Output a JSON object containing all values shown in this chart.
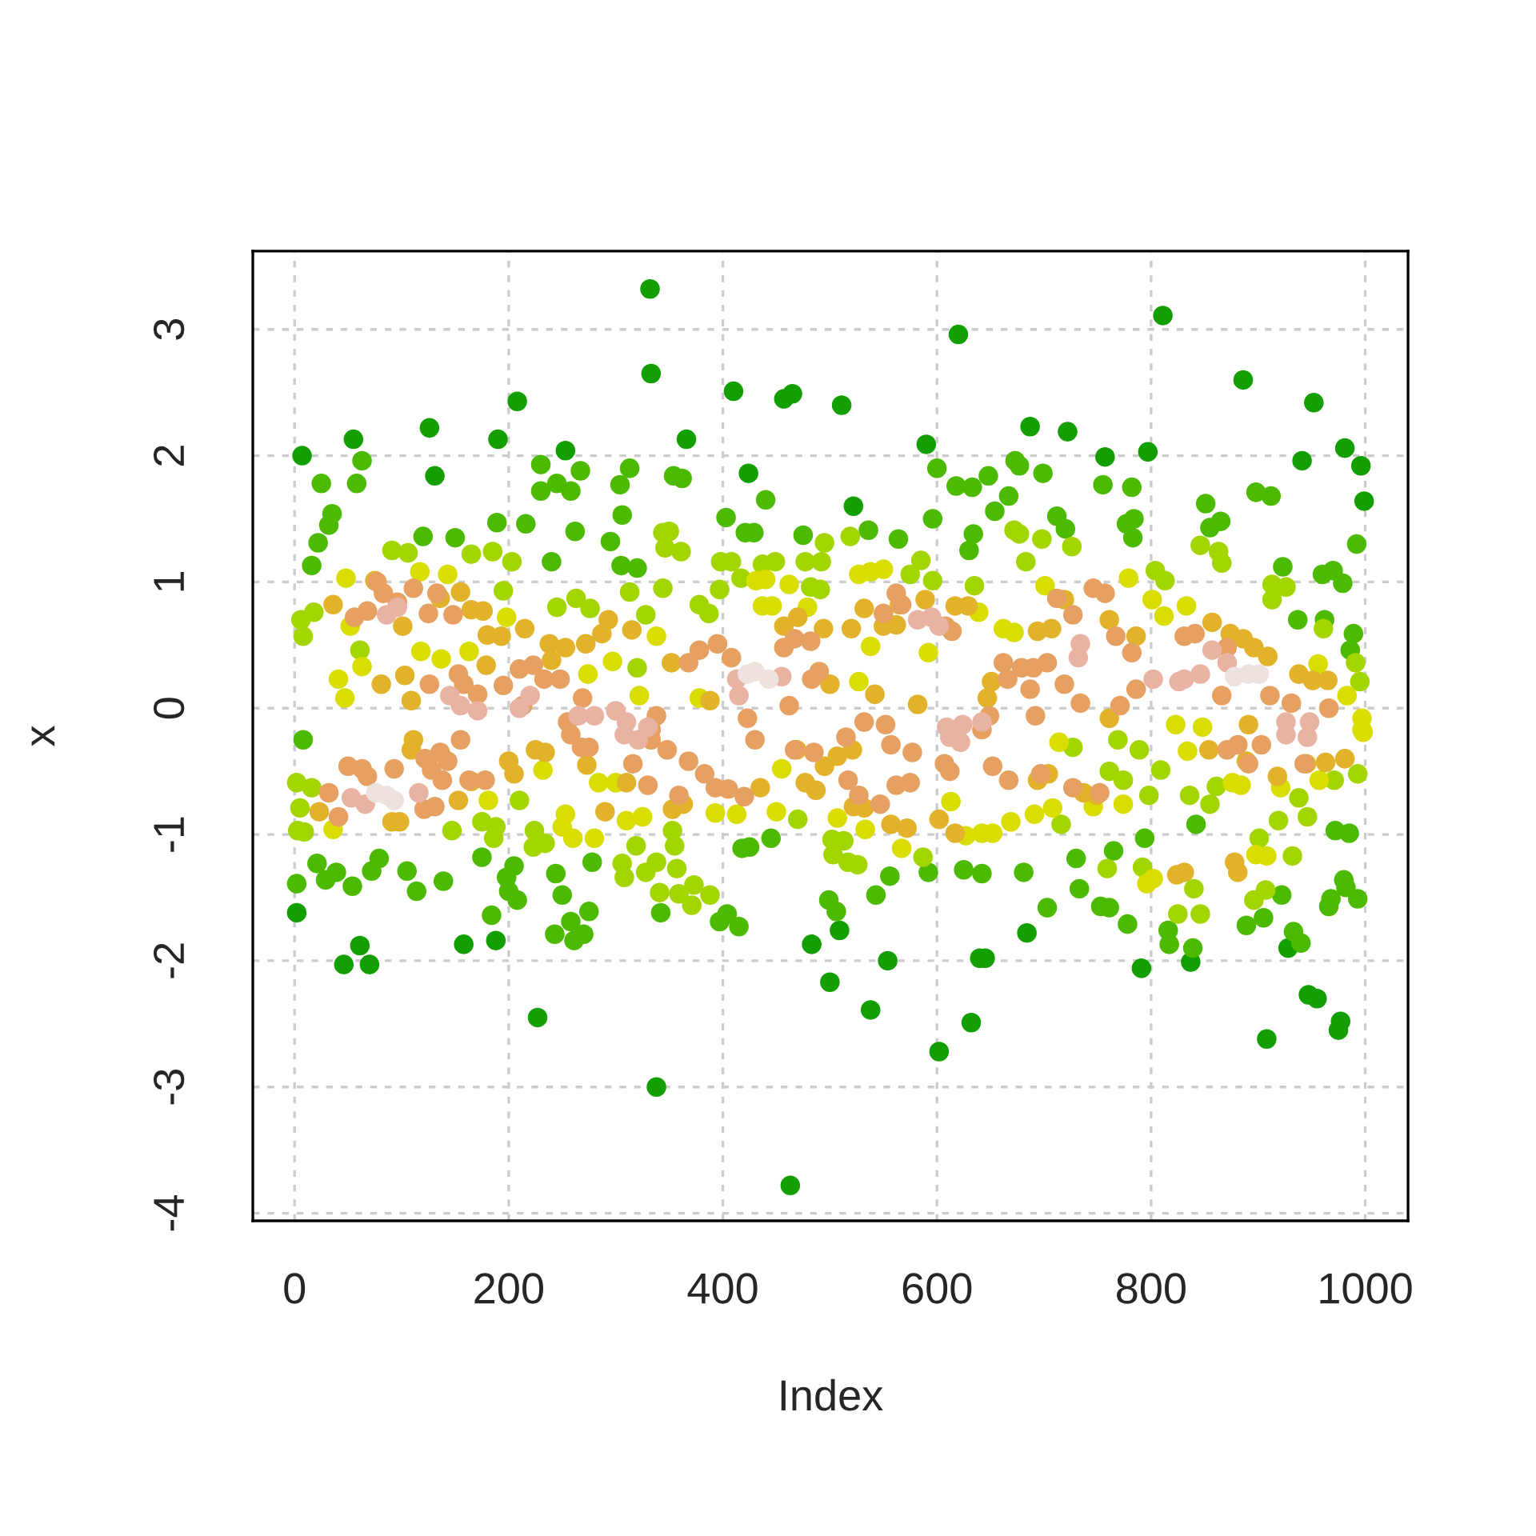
{
  "chart_data": {
    "type": "scatter",
    "xlabel": "Index",
    "ylabel": "x",
    "xlim": [
      -39,
      1040
    ],
    "ylim": [
      -4.06,
      3.62
    ],
    "xticks": [
      0,
      200,
      400,
      600,
      800,
      1000
    ],
    "yticks": [
      -4,
      -3,
      -2,
      -1,
      0,
      1,
      2,
      3
    ],
    "grid": true,
    "marker": "circle",
    "series": [
      {
        "color": "#139f00",
        "x": [
          7,
          55,
          126,
          190,
          208,
          253,
          332,
          333,
          366,
          410,
          457,
          465,
          511,
          424,
          522,
          590,
          620,
          687,
          722,
          757,
          797,
          811,
          886,
          952,
          981,
          996,
          999,
          941,
          131,
          2,
          46,
          70,
          61,
          227,
          338,
          463,
          500,
          538,
          554,
          602,
          632,
          640,
          645,
          483,
          509,
          684,
          791,
          837,
          908,
          947,
          955,
          977,
          975,
          928,
          158,
          188
        ],
        "values": [
          2.0,
          2.13,
          2.22,
          2.13,
          2.43,
          2.04,
          3.32,
          2.65,
          2.13,
          2.51,
          2.45,
          2.49,
          2.4,
          1.86,
          1.6,
          2.09,
          2.96,
          2.23,
          2.19,
          1.99,
          2.03,
          3.11,
          2.6,
          2.42,
          2.06,
          1.92,
          1.64,
          1.96,
          1.84,
          -1.62,
          -2.03,
          -2.03,
          -1.88,
          -2.45,
          -3.0,
          -3.78,
          -2.17,
          -2.39,
          -2.0,
          -2.72,
          -2.49,
          -1.98,
          -1.98,
          -1.87,
          -1.76,
          -1.78,
          -2.06,
          -2.01,
          -2.62,
          -2.27,
          -2.3,
          -2.48,
          -2.55,
          -1.9,
          -1.87,
          -1.84
        ]
      },
      {
        "color": "#4cba00",
        "x": [
          25,
          63,
          58,
          35,
          32,
          22,
          16,
          189,
          216,
          230,
          230,
          245,
          258,
          267,
          262,
          240,
          120,
          150,
          313,
          304,
          306,
          295,
          305,
          320,
          354,
          362,
          440,
          403,
          600,
          596,
          673,
          677,
          648,
          667,
          654,
          618,
          633,
          634,
          630,
          421,
          429,
          475,
          536,
          564,
          699,
          755,
          782,
          898,
          912,
          851,
          855,
          865,
          777,
          784,
          783,
          712,
          720,
          923,
          992,
          960,
          970,
          979,
          989,
          986,
          937,
          962,
          8,
          21,
          29,
          39,
          54,
          72,
          79,
          105,
          114,
          139,
          175,
          184,
          198,
          205,
          200,
          208,
          244,
          250,
          275,
          258,
          243,
          261,
          270,
          278,
          415,
          397,
          404,
          342,
          418,
          425,
          445,
          506,
          499,
          543,
          556,
          592,
          625,
          642,
          681,
          933,
          940,
          839,
          816,
          817,
          778,
          753,
          761,
          703,
          733,
          730,
          765,
          794,
          842,
          889,
          905,
          922,
          966,
          968,
          993,
          980,
          982,
          972,
          985,
          2
        ],
        "values": [
          1.78,
          1.96,
          1.78,
          1.54,
          1.45,
          1.31,
          1.13,
          1.47,
          1.46,
          1.93,
          1.72,
          1.78,
          1.72,
          1.88,
          1.4,
          1.16,
          1.36,
          1.35,
          1.9,
          1.77,
          1.53,
          1.32,
          1.13,
          1.11,
          1.84,
          1.82,
          1.65,
          1.51,
          1.9,
          1.5,
          1.96,
          1.92,
          1.84,
          1.68,
          1.56,
          1.76,
          1.75,
          1.38,
          1.25,
          1.39,
          1.39,
          1.37,
          1.41,
          1.34,
          1.86,
          1.77,
          1.75,
          1.71,
          1.68,
          1.62,
          1.43,
          1.48,
          1.46,
          1.5,
          1.35,
          1.52,
          1.42,
          1.12,
          1.3,
          1.06,
          1.09,
          0.99,
          0.59,
          0.46,
          0.7,
          0.7,
          -0.25,
          -1.23,
          -1.36,
          -1.3,
          -1.41,
          -1.29,
          -1.19,
          -1.29,
          -1.45,
          -1.37,
          -1.18,
          -1.64,
          -1.34,
          -1.25,
          -1.45,
          -1.52,
          -1.31,
          -1.48,
          -1.61,
          -1.69,
          -1.79,
          -1.84,
          -1.79,
          -1.22,
          -1.73,
          -1.69,
          -1.63,
          -1.62,
          -1.11,
          -1.1,
          -1.03,
          -1.61,
          -1.52,
          -1.48,
          -1.33,
          -1.3,
          -1.28,
          -1.31,
          -1.3,
          -1.77,
          -1.86,
          -1.9,
          -1.76,
          -1.87,
          -1.71,
          -1.57,
          -1.58,
          -1.58,
          -1.43,
          -1.19,
          -1.13,
          -1.03,
          -0.92,
          -1.72,
          -1.66,
          -1.48,
          -1.57,
          -1.51,
          -1.51,
          -1.36,
          -1.42,
          -0.97,
          -0.99,
          -1.39
        ]
      },
      {
        "color": "#a3d500",
        "x": [
          91,
          106,
          344,
          350,
          346,
          361,
          313,
          344,
          585,
          596,
          635,
          804,
          813,
          913,
          926,
          913,
          961,
          991,
          995,
          846,
          863,
          866,
          683,
          698,
          726,
          165,
          185,
          203,
          195,
          245,
          263,
          276,
          6,
          8,
          18,
          320,
          61,
          398,
          408,
          437,
          449,
          477,
          492,
          495,
          519,
          575,
          672,
          677,
          397,
          417,
          482,
          491,
          378,
          387,
          328,
          2,
          5,
          16,
          3,
          9,
          175,
          188,
          186,
          210,
          224,
          234,
          223,
          308,
          319,
          306,
          147,
          353,
          355,
          338,
          357,
          328,
          502,
          513,
          503,
          517,
          526,
          587,
          470,
          769,
          789,
          761,
          774,
          798,
          809,
          836,
          855,
          861,
          919,
          938,
          946,
          932,
          901,
          896,
          907,
          840,
          825,
          846,
          792,
          759,
          716,
          727,
          993,
          971,
          341,
          359,
          371,
          373,
          388
        ],
        "values": [
          1.25,
          1.23,
          1.39,
          1.4,
          1.27,
          1.24,
          0.92,
          0.95,
          1.17,
          1.01,
          0.97,
          1.09,
          1.01,
          0.98,
          0.96,
          0.86,
          0.63,
          0.36,
          0.21,
          1.29,
          1.24,
          1.15,
          1.16,
          1.34,
          1.28,
          1.22,
          1.24,
          1.16,
          0.93,
          0.8,
          0.87,
          0.79,
          0.7,
          0.57,
          0.76,
          0.32,
          0.46,
          1.16,
          1.16,
          1.14,
          1.16,
          1.16,
          1.16,
          1.31,
          1.36,
          1.06,
          1.41,
          1.38,
          0.94,
          1.03,
          0.96,
          0.94,
          0.82,
          0.75,
          0.74,
          -0.59,
          -0.79,
          -0.63,
          -0.97,
          -0.98,
          -0.9,
          -0.94,
          -1.03,
          -0.73,
          -0.97,
          -1.07,
          -1.1,
          -1.34,
          -1.09,
          -1.23,
          -0.97,
          -0.97,
          -1.09,
          -1.22,
          -1.27,
          -1.3,
          -1.04,
          -1.05,
          -1.16,
          -1.22,
          -1.24,
          -1.18,
          -0.88,
          -0.25,
          -0.33,
          -0.5,
          -0.57,
          -0.69,
          -0.49,
          -0.69,
          -0.76,
          -0.62,
          -0.89,
          -0.71,
          -0.86,
          -1.17,
          -1.03,
          -1.52,
          -1.44,
          -1.43,
          -1.63,
          -1.63,
          -1.26,
          -1.27,
          -0.92,
          -0.31,
          -0.52,
          -0.57,
          -1.46,
          -1.47,
          -1.56,
          -1.4,
          -1.48
        ]
      },
      {
        "color": "#dadd00",
        "x": [
          48,
          117,
          143,
          52,
          63,
          118,
          137,
          163,
          198,
          297,
          274,
          322,
          41,
          47,
          527,
          538,
          550,
          431,
          440,
          437,
          446,
          462,
          479,
          639,
          662,
          672,
          592,
          538,
          338,
          378,
          527,
          701,
          779,
          801,
          812,
          833,
          956,
          983,
          997,
          997,
          823,
          848,
          232,
          181,
          253,
          250,
          36,
          260,
          280,
          284,
          300,
          310,
          325,
          393,
          413,
          450,
          455,
          507,
          533,
          567,
          613,
          627,
          642,
          652,
          669,
          714,
          691,
          708,
          746,
          774,
          834,
          876,
          884,
          921,
          957,
          998,
          908,
          898,
          796,
          802
        ],
        "values": [
          1.03,
          1.08,
          1.06,
          0.65,
          0.33,
          0.45,
          0.39,
          0.45,
          0.72,
          0.37,
          0.27,
          0.1,
          0.23,
          0.08,
          1.06,
          1.08,
          1.1,
          1.01,
          1.02,
          0.81,
          0.81,
          0.98,
          0.8,
          0.76,
          0.63,
          0.6,
          0.44,
          0.49,
          0.57,
          0.08,
          0.21,
          0.97,
          1.03,
          0.86,
          0.73,
          0.81,
          0.35,
          0.1,
          -0.08,
          -0.17,
          -0.13,
          -0.15,
          -0.49,
          -0.73,
          -0.84,
          -0.94,
          -0.96,
          -1.03,
          -1.03,
          -0.59,
          -0.59,
          -0.89,
          -0.86,
          -0.83,
          -0.84,
          -0.82,
          -0.48,
          -0.87,
          -0.96,
          -1.11,
          -0.74,
          -1.01,
          -0.99,
          -0.99,
          -0.9,
          -0.27,
          -0.84,
          -0.79,
          -0.78,
          -0.76,
          -0.34,
          -0.59,
          -0.61,
          -0.63,
          -0.57,
          -0.19,
          -1.17,
          -1.16,
          -1.39,
          -1.35
        ]
      },
      {
        "color": "#e2b32a",
        "x": [
          75,
          136,
          155,
          165,
          176,
          180,
          193,
          215,
          238,
          253,
          272,
          287,
          293,
          81,
          103,
          109,
          179,
          240,
          315,
          36,
          101,
          589,
          617,
          629,
          565,
          532,
          520,
          550,
          562,
          494,
          470,
          457,
          542,
          582,
          651,
          647,
          352,
          388,
          500,
          761,
          786,
          857,
          874,
          886,
          896,
          909,
          938,
          951,
          965,
          891,
          694,
          707,
          719,
          761,
          109,
          111,
          23,
          153,
          165,
          200,
          205,
          225,
          234,
          273,
          290,
          310,
          91,
          98,
          495,
          507,
          521,
          435,
          477,
          487,
          522,
          532,
          557,
          572,
          602,
          617,
          469,
          353,
          363,
          694,
          704,
          737,
          749,
          854,
          889,
          918,
          963,
          981,
          945,
          881,
          824,
          831,
          878
        ],
        "values": [
          1.01,
          0.87,
          0.92,
          0.78,
          0.77,
          0.58,
          0.57,
          0.63,
          0.51,
          0.48,
          0.51,
          0.59,
          0.7,
          0.19,
          0.26,
          0.06,
          0.34,
          0.38,
          0.62,
          0.82,
          0.65,
          0.86,
          0.81,
          0.81,
          0.82,
          0.79,
          0.63,
          0.65,
          0.66,
          0.63,
          0.72,
          0.65,
          0.11,
          0.03,
          0.21,
          0.08,
          0.36,
          0.06,
          0.19,
          0.7,
          0.57,
          0.68,
          0.59,
          0.55,
          0.48,
          0.41,
          0.27,
          0.22,
          0.22,
          -0.13,
          0.61,
          0.63,
          0.86,
          -0.08,
          -0.33,
          -0.25,
          -0.82,
          -0.73,
          -0.58,
          -0.42,
          -0.52,
          -0.33,
          -0.35,
          -0.45,
          -0.82,
          -0.59,
          -0.9,
          -0.9,
          -0.46,
          -0.38,
          -0.33,
          -0.63,
          -0.59,
          -0.65,
          -0.78,
          -0.79,
          -0.92,
          -0.95,
          -0.88,
          -0.99,
          -0.33,
          -0.8,
          -0.76,
          -0.57,
          -0.52,
          -0.67,
          -0.69,
          -0.33,
          -0.42,
          -0.54,
          -0.43,
          -0.4,
          -0.44,
          -1.3,
          -1.32,
          -1.3,
          -1.22
        ]
      },
      {
        "color": "#e5a062",
        "x": [
          77,
          83,
          96,
          56,
          68,
          111,
          133,
          125,
          148,
          210,
          223,
          233,
          248,
          153,
          158,
          171,
          195,
          126,
          213,
          255,
          269,
          338,
          333,
          395,
          408,
          378,
          368,
          457,
          467,
          482,
          483,
          490,
          462,
          567,
          562,
          550,
          614,
          608,
          662,
          679,
          666,
          649,
          642,
          532,
          552,
          423,
          712,
          727,
          746,
          757,
          767,
          782,
          690,
          703,
          687,
          719,
          734,
          771,
          786,
          831,
          841,
          871,
          911,
          931,
          966,
          866,
          692,
          50,
          63,
          68,
          32,
          41,
          93,
          122,
          136,
          143,
          128,
          138,
          121,
          131,
          163,
          178,
          155,
          258,
          268,
          275,
          316,
          330,
          333,
          348,
          368,
          383,
          393,
          405,
          420,
          359,
          467,
          485,
          517,
          527,
          547,
          557,
          577,
          562,
          575,
          607,
          612,
          652,
          667,
          430,
          515,
          871,
          881,
          891,
          903,
          943,
          727,
          752,
          697
        ],
        "values": [
          1.0,
          0.91,
          0.84,
          0.72,
          0.77,
          0.95,
          0.91,
          0.75,
          0.74,
          0.31,
          0.34,
          0.23,
          0.23,
          0.27,
          0.19,
          0.11,
          0.18,
          0.19,
          0.02,
          -0.11,
          0.08,
          -0.06,
          -0.17,
          0.51,
          0.4,
          0.46,
          0.36,
          0.48,
          0.55,
          0.53,
          0.23,
          0.29,
          0.02,
          0.82,
          0.91,
          0.75,
          0.61,
          0.65,
          0.36,
          0.32,
          0.23,
          -0.06,
          -0.17,
          -0.11,
          -0.13,
          -0.08,
          0.87,
          0.74,
          0.95,
          0.91,
          0.57,
          0.44,
          0.32,
          0.36,
          0.15,
          0.19,
          0.04,
          0.02,
          0.15,
          0.57,
          0.59,
          0.48,
          0.1,
          0.04,
          0.0,
          0.1,
          -0.06,
          -0.46,
          -0.48,
          -0.54,
          -0.67,
          -0.86,
          -0.48,
          -0.4,
          -0.35,
          -0.42,
          -0.49,
          -0.57,
          -0.8,
          -0.78,
          -0.57,
          -0.57,
          -0.25,
          -0.21,
          -0.31,
          -0.31,
          -0.44,
          -0.61,
          -0.25,
          -0.33,
          -0.42,
          -0.52,
          -0.63,
          -0.64,
          -0.7,
          -0.69,
          -0.33,
          -0.35,
          -0.57,
          -0.69,
          -0.76,
          -0.29,
          -0.35,
          -0.61,
          -0.59,
          -0.44,
          -0.5,
          -0.46,
          -0.57,
          -0.25,
          -0.23,
          -0.33,
          -0.29,
          -0.44,
          -0.29,
          -0.44,
          -0.63,
          -0.67,
          -0.52
        ]
      },
      {
        "color": "#e9b3a3",
        "x": [
          145,
          155,
          171,
          210,
          220,
          265,
          280,
          300,
          310,
          86,
          96,
          413,
          415,
          455,
          582,
          595,
          602,
          609,
          624,
          642,
          330,
          734,
          732,
          826,
          831,
          846,
          857,
          871,
          926,
          948,
          802,
          53,
          66,
          116,
          308,
          321,
          612,
          622,
          926,
          946
        ],
        "values": [
          0.1,
          0.02,
          -0.02,
          0.0,
          0.1,
          -0.06,
          -0.06,
          -0.02,
          -0.11,
          0.74,
          0.8,
          0.23,
          0.1,
          0.25,
          0.7,
          0.72,
          0.65,
          -0.15,
          -0.13,
          -0.11,
          -0.15,
          0.51,
          0.4,
          0.21,
          0.23,
          0.27,
          0.46,
          0.36,
          -0.11,
          -0.11,
          0.23,
          -0.71,
          -0.76,
          -0.67,
          -0.21,
          -0.25,
          -0.23,
          -0.27,
          -0.21,
          -0.23
        ]
      },
      {
        "color": "#eee2df",
        "x": [
          423,
          430,
          443,
          76,
          86,
          93,
          878,
          891,
          901
        ],
        "values": [
          0.27,
          0.29,
          0.23,
          -0.67,
          -0.69,
          -0.73,
          0.25,
          0.27,
          0.27
        ]
      }
    ]
  }
}
